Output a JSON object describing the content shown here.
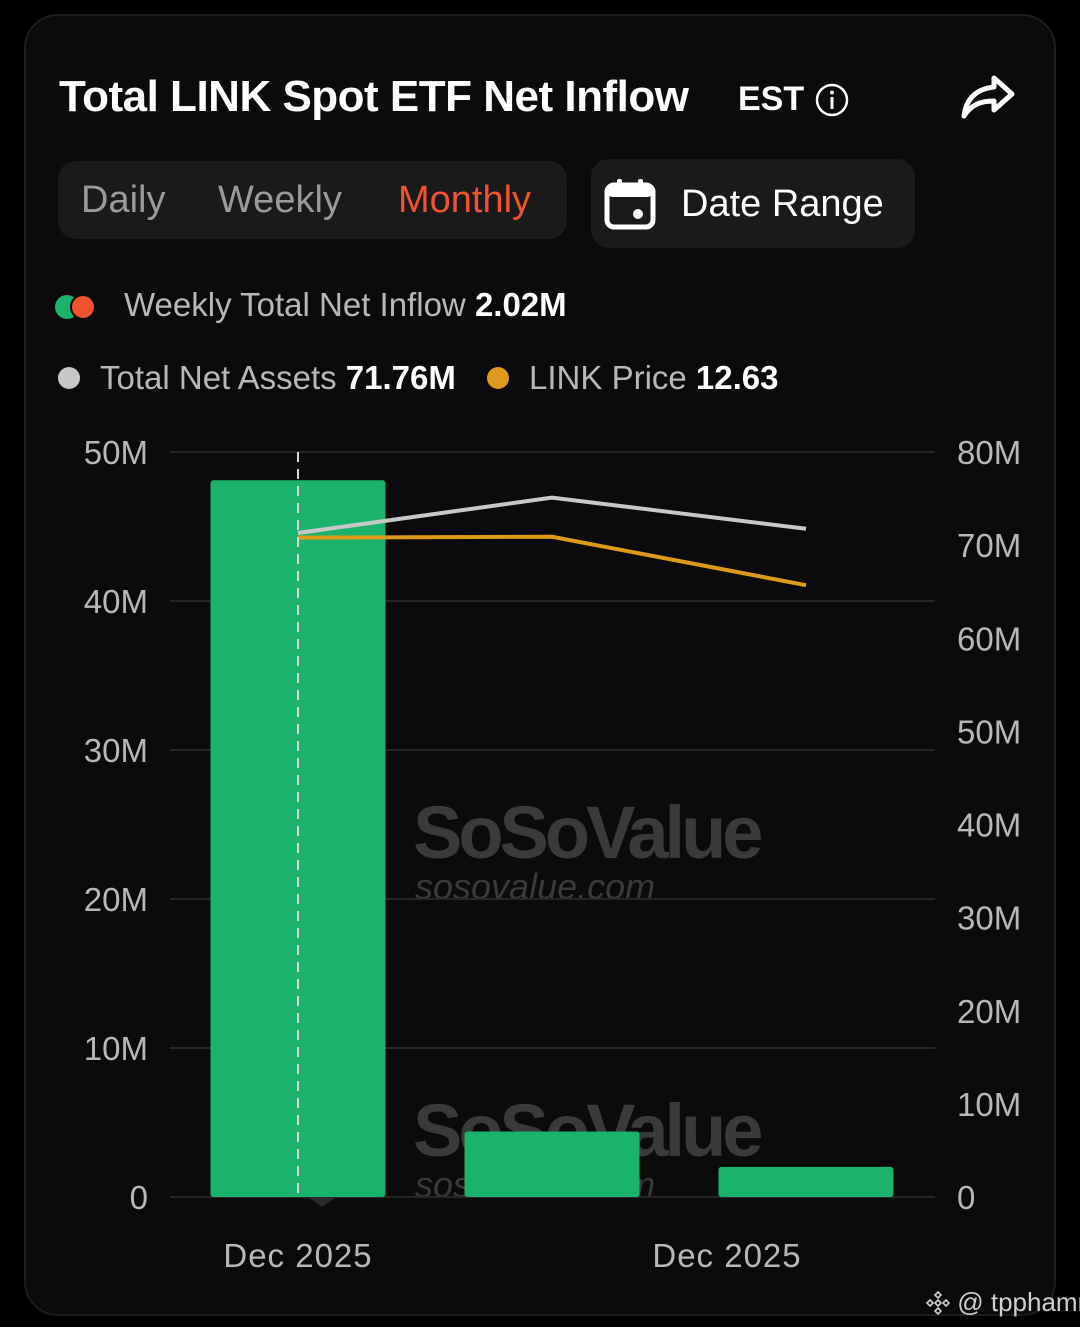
{
  "header": {
    "title": "Total LINK Spot ETF Net Inflow",
    "timezone": "EST"
  },
  "tabs": [
    {
      "label": "Daily",
      "active": false
    },
    {
      "label": "Weekly",
      "active": false
    },
    {
      "label": "Monthly",
      "active": true
    }
  ],
  "date_range": {
    "label": "Date Range"
  },
  "legend": {
    "inflow_label": "Weekly Total Net Inflow",
    "inflow_value": "2.02M",
    "assets_label": "Total Net Assets",
    "assets_value": "71.76M",
    "price_label": "LINK Price",
    "price_value": "12.63"
  },
  "watermark": {
    "brand": "SoSoValue",
    "url": "sosovalue.com"
  },
  "credit": "@ tpphamm",
  "colors": {
    "inflow_bar": "#1bb36b",
    "inflow_negative": "#f2522e",
    "assets_line": "#c8c8c8",
    "price_line": "#e09a1a",
    "accent": "#f2522e"
  },
  "chart_data": {
    "type": "bar",
    "categories": [
      "",
      "",
      ""
    ],
    "x_tick_labels": [
      "Dec 2025",
      "Dec 2025"
    ],
    "series": [
      {
        "name": "Weekly Total Net Inflow",
        "type": "bar",
        "axis": "left",
        "values": [
          48.1,
          4.4,
          2.02
        ]
      },
      {
        "name": "Total Net Assets",
        "type": "line",
        "axis": "right",
        "values": [
          71.3,
          75.1,
          71.76
        ]
      },
      {
        "name": "LINK Price",
        "type": "line",
        "axis": "right",
        "values": [
          70.8,
          70.9,
          65.7
        ]
      }
    ],
    "y_left": {
      "ticks": [
        "0",
        "10M",
        "20M",
        "30M",
        "40M",
        "50M"
      ],
      "ylim": [
        0,
        50
      ]
    },
    "y_right": {
      "ticks": [
        "0",
        "10M",
        "20M",
        "30M",
        "40M",
        "50M",
        "60M",
        "70M",
        "80M"
      ],
      "ylim": [
        0,
        80
      ]
    },
    "grid": true
  }
}
